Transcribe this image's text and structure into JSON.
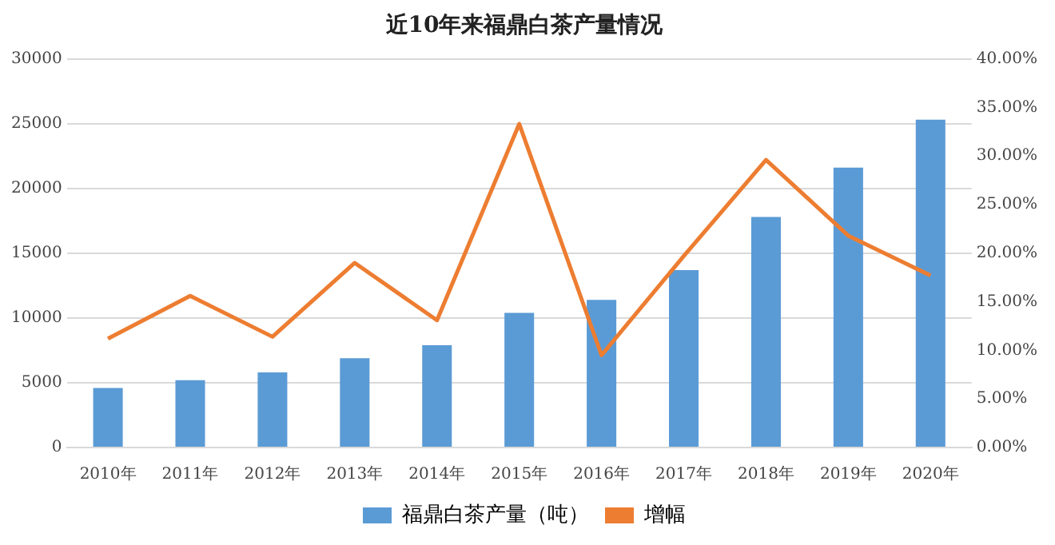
{
  "chart_data": {
    "type": "bar",
    "title": "近10年来福鼎白茶产量情况",
    "categories": [
      "2010年",
      "2011年",
      "2012年",
      "2013年",
      "2014年",
      "2015年",
      "2016年",
      "2017年",
      "2018年",
      "2019年",
      "2020年"
    ],
    "series": [
      {
        "name": "福鼎白茶产量（吨）",
        "color": "#5b9bd5",
        "values": [
          4600,
          5200,
          5800,
          6900,
          7900,
          10400,
          11400,
          13700,
          17800,
          21600,
          25300
        ]
      },
      {
        "name": "增幅",
        "type": "line",
        "axis": "y2",
        "color": "#ed7d31",
        "values": [
          11.2,
          15.6,
          11.4,
          19.0,
          13.1,
          33.3,
          9.5,
          19.7,
          29.6,
          21.8,
          17.7
        ]
      }
    ],
    "ylim": [
      0,
      30000
    ],
    "yticks": [
      0,
      5000,
      10000,
      15000,
      20000,
      25000,
      30000
    ],
    "y2lim": [
      0,
      40
    ],
    "y2ticks": [
      {
        "value": 0,
        "label": "0.00%"
      },
      {
        "value": 5,
        "label": "5.00%"
      },
      {
        "value": 10,
        "label": "10.00%"
      },
      {
        "value": 15,
        "label": "15.00%"
      },
      {
        "value": 20,
        "label": "20.00%"
      },
      {
        "value": 25,
        "label": "25.00%"
      },
      {
        "value": 30,
        "label": "30.00%"
      },
      {
        "value": 35,
        "label": "35.00%"
      },
      {
        "value": 40,
        "label": "40.00%"
      }
    ],
    "grid": "y",
    "legend": "bottom",
    "marker": "none"
  }
}
